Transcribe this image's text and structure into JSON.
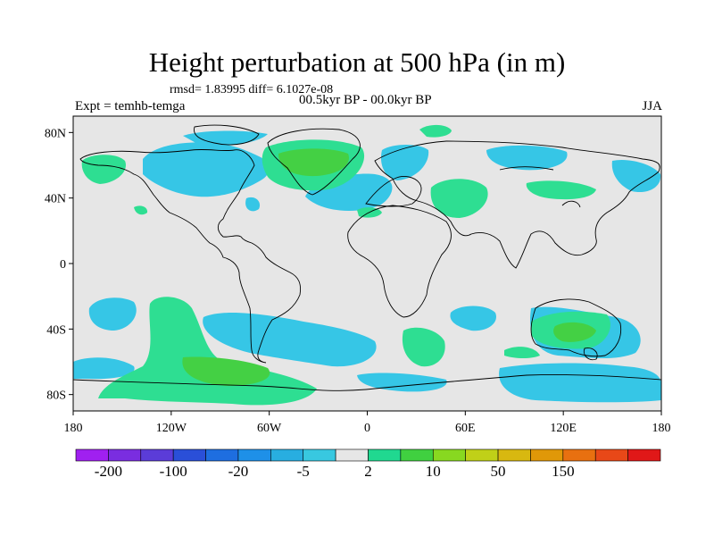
{
  "title": "Height perturbation at 500 hPa (in m)",
  "stats_text": "rmsd= 1.83995 diff= 6.1027e-08",
  "left_label": "Expt = temhb-temga",
  "center_label": "00.5kyr BP - 00.0kyr BP",
  "right_label": "JJA",
  "lat_ticks": [
    {
      "value": 80,
      "label": "80N"
    },
    {
      "value": 40,
      "label": "40N"
    },
    {
      "value": 0,
      "label": "0"
    },
    {
      "value": -40,
      "label": "40S"
    },
    {
      "value": -80,
      "label": "80S"
    }
  ],
  "lon_ticks": [
    {
      "value": -180,
      "label": "180"
    },
    {
      "value": -120,
      "label": "120W"
    },
    {
      "value": -60,
      "label": "60W"
    },
    {
      "value": 0,
      "label": "0"
    },
    {
      "value": 60,
      "label": "60E"
    },
    {
      "value": 120,
      "label": "120E"
    },
    {
      "value": 180,
      "label": "180"
    }
  ],
  "colorbar": {
    "colors": [
      "#a020f0",
      "#7a2de0",
      "#5b3cd8",
      "#2a4fd8",
      "#1e6ee0",
      "#1e90e8",
      "#28aee0",
      "#38c8e0",
      "#e6e6e6",
      "#20d890",
      "#40d040",
      "#88d820",
      "#c0d018",
      "#d8b810",
      "#e09808",
      "#e87010",
      "#e84818",
      "#e01818"
    ],
    "labels": [
      {
        "boundary": 1,
        "text": "-200"
      },
      {
        "boundary": 3,
        "text": "-100"
      },
      {
        "boundary": 5,
        "text": "-20"
      },
      {
        "boundary": 7,
        "text": "-5"
      },
      {
        "boundary": 9,
        "text": "2"
      },
      {
        "boundary": 11,
        "text": "10"
      },
      {
        "boundary": 13,
        "text": "50"
      },
      {
        "boundary": 15,
        "text": "150"
      }
    ]
  },
  "anomaly_colors": {
    "negative_light": "#36c6e6",
    "positive_light": "#2ede92",
    "positive_medium": "#44d044",
    "background": "#e6e6e6"
  }
}
